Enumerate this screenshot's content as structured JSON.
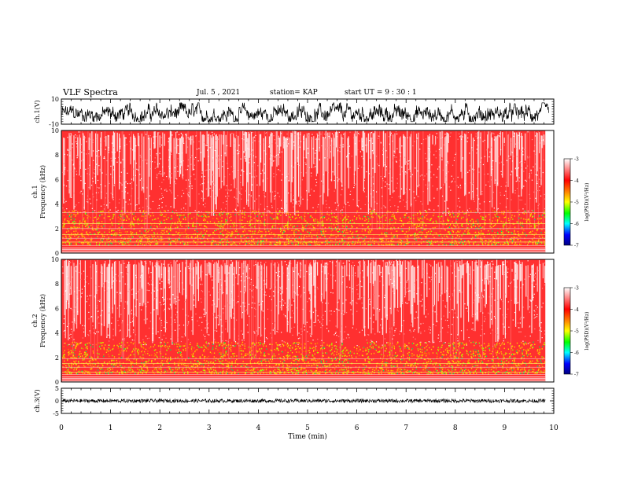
{
  "header": {
    "title": "VLF Spectra",
    "date": "Jul. 5 , 2021",
    "station": "station= KAP",
    "start_ut": "start UT = 9 : 30 : 1"
  },
  "colors": {
    "spectrogram_scale": [
      "#000080",
      "#0000ff",
      "#0080ff",
      "#00ffff",
      "#00ff00",
      "#80ff00",
      "#ffff00",
      "#ff8000",
      "#ff0000",
      "#ff6060",
      "#ffffff"
    ]
  },
  "chart_data": [
    {
      "type": "line",
      "name": "ch1-waveform",
      "ylabel": "ch.1(V)",
      "ylim": [
        -10,
        10
      ],
      "yticks": [
        "10",
        "-10"
      ],
      "xlim": [
        0,
        10
      ],
      "description_range": [
        -8,
        7
      ]
    },
    {
      "type": "heatmap",
      "name": "ch1-spectrogram",
      "ylabel": "ch.1\nFrequency (kHz)",
      "ylabel_lines": [
        "ch.1",
        "Frequency (kHz)"
      ],
      "ylim": [
        0,
        10
      ],
      "yticks": [
        "0",
        "2",
        "4",
        "6",
        "8",
        "10"
      ],
      "xlim": [
        0,
        10
      ],
      "data_end_min": 9.83,
      "colorbar": {
        "label": "log(PSD)(V²/Hz)",
        "range": [
          -7,
          -3
        ],
        "ticks": [
          "-3",
          "-4",
          "-5",
          "-6",
          "-7"
        ]
      }
    },
    {
      "type": "heatmap",
      "name": "ch2-spectrogram",
      "ylabel_lines": [
        "ch.2",
        "Frequency (kHz)"
      ],
      "ylim": [
        0,
        10
      ],
      "yticks": [
        "0",
        "2",
        "4",
        "6",
        "8",
        "10"
      ],
      "xlim": [
        0,
        10
      ],
      "data_end_min": 9.83,
      "colorbar": {
        "label": "log(PSD)(V²/Hz)",
        "range": [
          -7,
          -3
        ],
        "ticks": [
          "-3",
          "-4",
          "-5",
          "-6",
          "-7"
        ]
      }
    },
    {
      "type": "line",
      "name": "ch3-waveform",
      "ylabel": "ch.3(V)",
      "ylim": [
        -5,
        5
      ],
      "yticks": [
        "5",
        "0",
        "-5"
      ],
      "xlim": [
        0,
        10
      ],
      "description_range": [
        -0.7,
        0.7
      ],
      "xlabel": "Time (min)",
      "xticks": [
        "0",
        "1",
        "2",
        "3",
        "4",
        "5",
        "6",
        "7",
        "8",
        "9",
        "10"
      ]
    }
  ]
}
